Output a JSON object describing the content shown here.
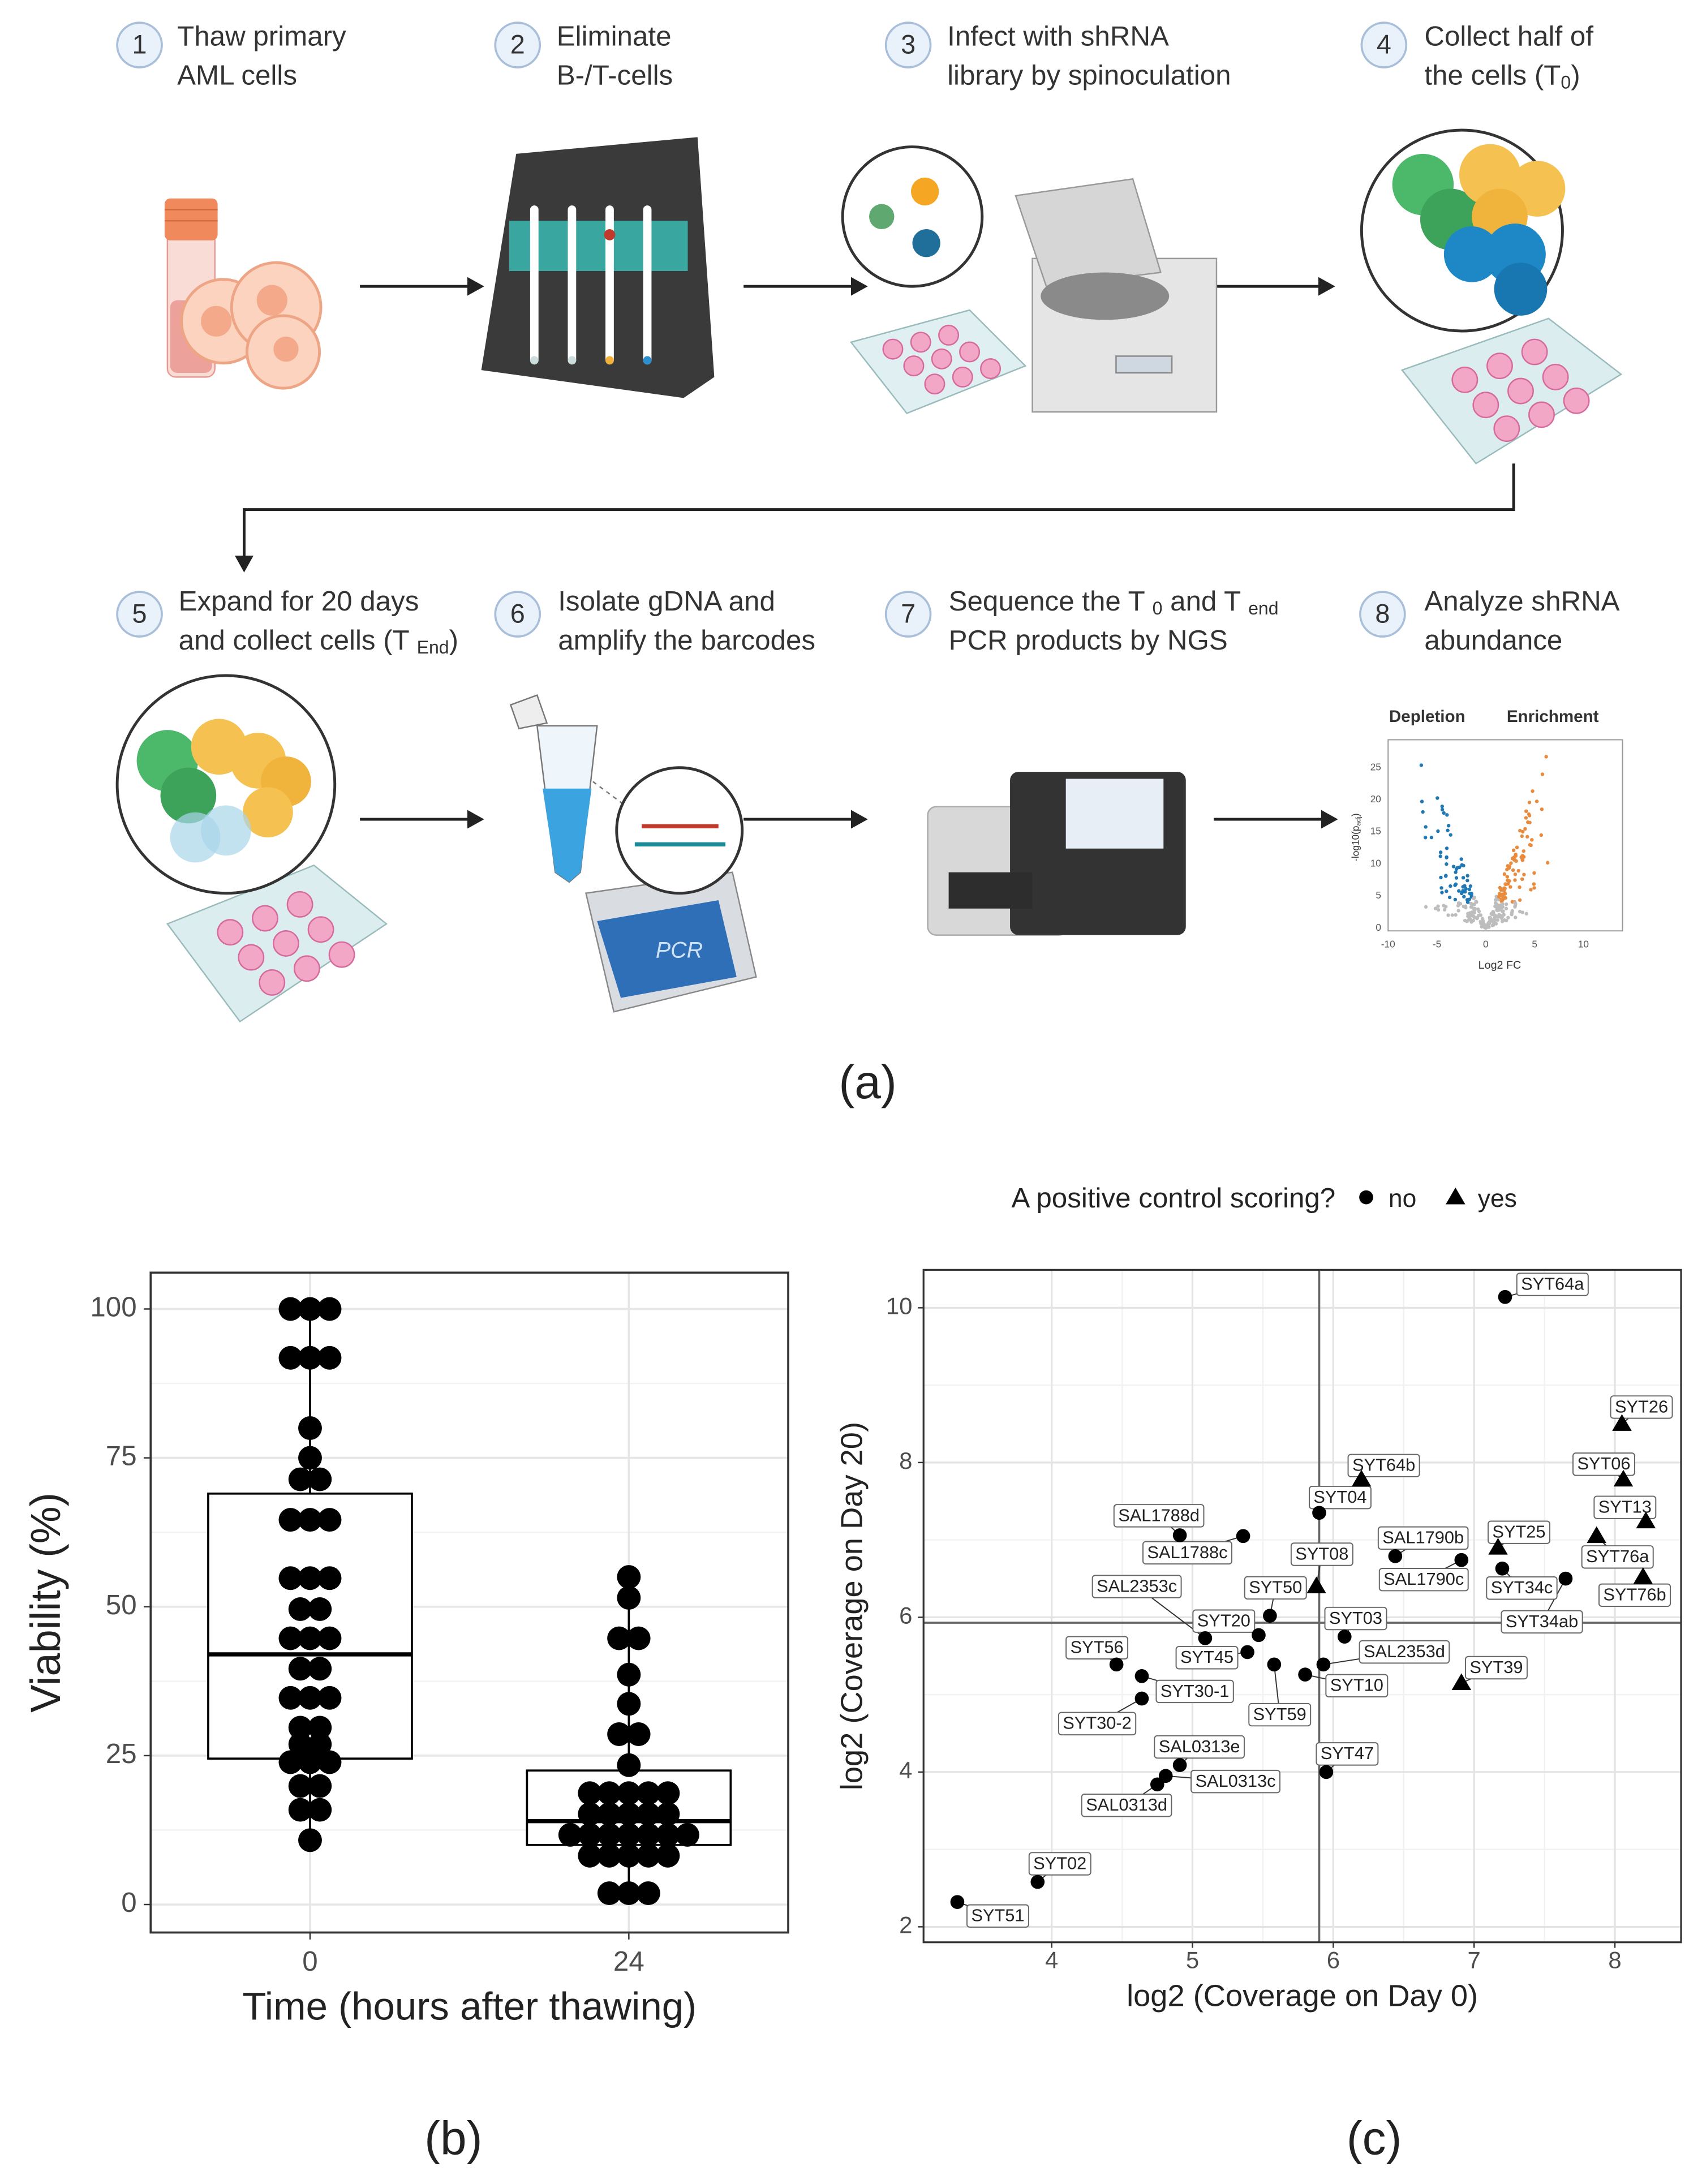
{
  "diagram": {
    "panel_label": "(a)",
    "steps": [
      {
        "number": 1,
        "lines": [
          [
            "Thaw primary"
          ],
          [
            "AML cells"
          ]
        ]
      },
      {
        "number": 2,
        "lines": [
          [
            "Eliminate"
          ],
          [
            "B-/T-cells"
          ]
        ]
      },
      {
        "number": 3,
        "lines": [
          [
            "Infect with shRNA"
          ],
          [
            "library by spinoculation"
          ]
        ]
      },
      {
        "number": 4,
        "lines": [
          [
            "Collect half of"
          ],
          [
            "the cells (T",
            "0",
            ")"
          ]
        ]
      },
      {
        "number": 5,
        "lines": [
          [
            "Expand for 20 days"
          ],
          [
            "and collect cells (T ",
            "End",
            ")"
          ]
        ]
      },
      {
        "number": 6,
        "lines": [
          [
            "Isolate gDNA and"
          ],
          [
            "amplify the barcodes"
          ]
        ]
      },
      {
        "number": 7,
        "lines": [
          [
            "Sequence the T ",
            "0",
            " and T ",
            "end"
          ],
          [
            "PCR products by NGS"
          ]
        ]
      },
      {
        "number": 8,
        "lines": [
          [
            "Analyze shRNA"
          ],
          [
            "abundance"
          ]
        ]
      }
    ],
    "pcr_label": "PCR",
    "volcano": {
      "left_label": "Depletion",
      "right_label": "Enrichment",
      "x_label": "Log2 FC",
      "y_label": [
        "-log10(p",
        "adj",
        ")"
      ],
      "x_ticks": [
        "-10",
        "-5",
        "0",
        "5",
        "10"
      ],
      "y_ticks": [
        "0",
        "5",
        "10",
        "15",
        "20",
        "25"
      ]
    }
  },
  "chart_data": [
    {
      "type": "box",
      "panel_label": "(b)",
      "x_label": "Time (hours after thawing)",
      "y_label": "Viability (%)",
      "categories": [
        "0",
        "24"
      ],
      "color": "#000000",
      "values": [
        [
          100,
          100,
          100,
          91.8,
          91.8,
          91.8,
          80,
          75,
          71.4,
          71.4,
          64.6,
          64.6,
          64.6,
          54.8,
          54.8,
          54.8,
          49.6,
          49.6,
          44.7,
          44.7,
          44.7,
          39.6,
          39.6,
          34.7,
          34.7,
          34.7,
          29.7,
          29.7,
          26.9,
          26.9,
          23.9,
          23.9,
          23.9,
          19.9,
          19.9,
          15.9,
          15.9,
          10.8
        ],
        [
          55,
          51.5,
          44.7,
          44.7,
          38.6,
          33.7,
          28.6,
          28.6,
          23.4,
          18.7,
          18.7,
          18.7,
          18.7,
          18.7,
          15.2,
          15.2,
          15.2,
          15.2,
          15.2,
          11.7,
          11.7,
          11.7,
          11.7,
          11.7,
          11.7,
          11.7,
          8.2,
          8.2,
          8.2,
          8.2,
          8.2,
          1.9,
          1.9,
          1.9
        ]
      ],
      "boxes": [
        {
          "whisker_low": 10.8,
          "q1": 24.5,
          "median": 42,
          "q3": 69,
          "whisker_high": 100
        },
        {
          "whisker_low": 1.9,
          "q1": 10,
          "median": 14,
          "q3": 22.5,
          "whisker_high": 55
        }
      ],
      "ylim": [
        -4.7,
        106.1
      ],
      "yticks": [
        0,
        25,
        50,
        75,
        100
      ],
      "grid": true
    },
    {
      "type": "scatter",
      "panel_label": "(c)",
      "x_label": "log2 (Coverage on Day 0)",
      "y_label": "log2 (Coverage on Day 20)",
      "legend_title": "A positive control scoring?",
      "legend": "top",
      "xlim": [
        3.09,
        8.47
      ],
      "ylim": [
        1.8,
        10.49
      ],
      "xticks": [
        4,
        5,
        6,
        7,
        8
      ],
      "yticks": [
        2,
        4,
        6,
        8,
        10
      ],
      "grid": true,
      "vline": 5.9,
      "hline": 5.93,
      "series": [
        {
          "name": "no",
          "marker": "circle",
          "color": "#000000",
          "labels": [
            "SYT64a",
            "SYT34ab",
            "SYT34c",
            "SYT04",
            "SAL1790b",
            "SAL1790c",
            "SAL1788d",
            "SAL1788c",
            "SYT50",
            "SAL2353c",
            "SYT20",
            "SYT03",
            "SYT45",
            "SAL2353d",
            "SYT59",
            "SYT10",
            "SYT56",
            "SYT30-1",
            "SYT30-2",
            "SAL0313e",
            "SAL0313c",
            "SAL0313d",
            "SYT47",
            "SYT02",
            "SYT51"
          ],
          "x": [
            7.22,
            7.65,
            7.2,
            5.9,
            6.44,
            6.91,
            4.91,
            5.36,
            5.55,
            5.09,
            5.47,
            6.08,
            5.39,
            5.93,
            5.58,
            5.8,
            4.46,
            4.64,
            4.64,
            4.91,
            4.81,
            4.75,
            5.95,
            3.9,
            3.33
          ],
          "y": [
            10.14,
            6.5,
            6.63,
            7.35,
            6.79,
            6.74,
            7.06,
            7.05,
            6.02,
            5.73,
            5.77,
            5.75,
            5.55,
            5.39,
            5.39,
            5.26,
            5.39,
            5.24,
            4.95,
            4.09,
            3.95,
            3.84,
            4.0,
            2.58,
            2.32
          ]
        },
        {
          "name": "yes",
          "marker": "triangle",
          "color": "#000000",
          "labels": [
            "SYT26",
            "SYT06",
            "SYT13",
            "SYT76a",
            "SYT76b",
            "SYT25",
            "SYT64b",
            "SYT08",
            "SYT39"
          ],
          "x": [
            8.05,
            8.06,
            8.22,
            7.87,
            8.2,
            7.17,
            6.2,
            5.88,
            6.91
          ],
          "y": [
            8.5,
            7.78,
            7.24,
            7.05,
            6.52,
            6.9,
            7.78,
            6.4,
            5.15
          ]
        }
      ]
    }
  ]
}
